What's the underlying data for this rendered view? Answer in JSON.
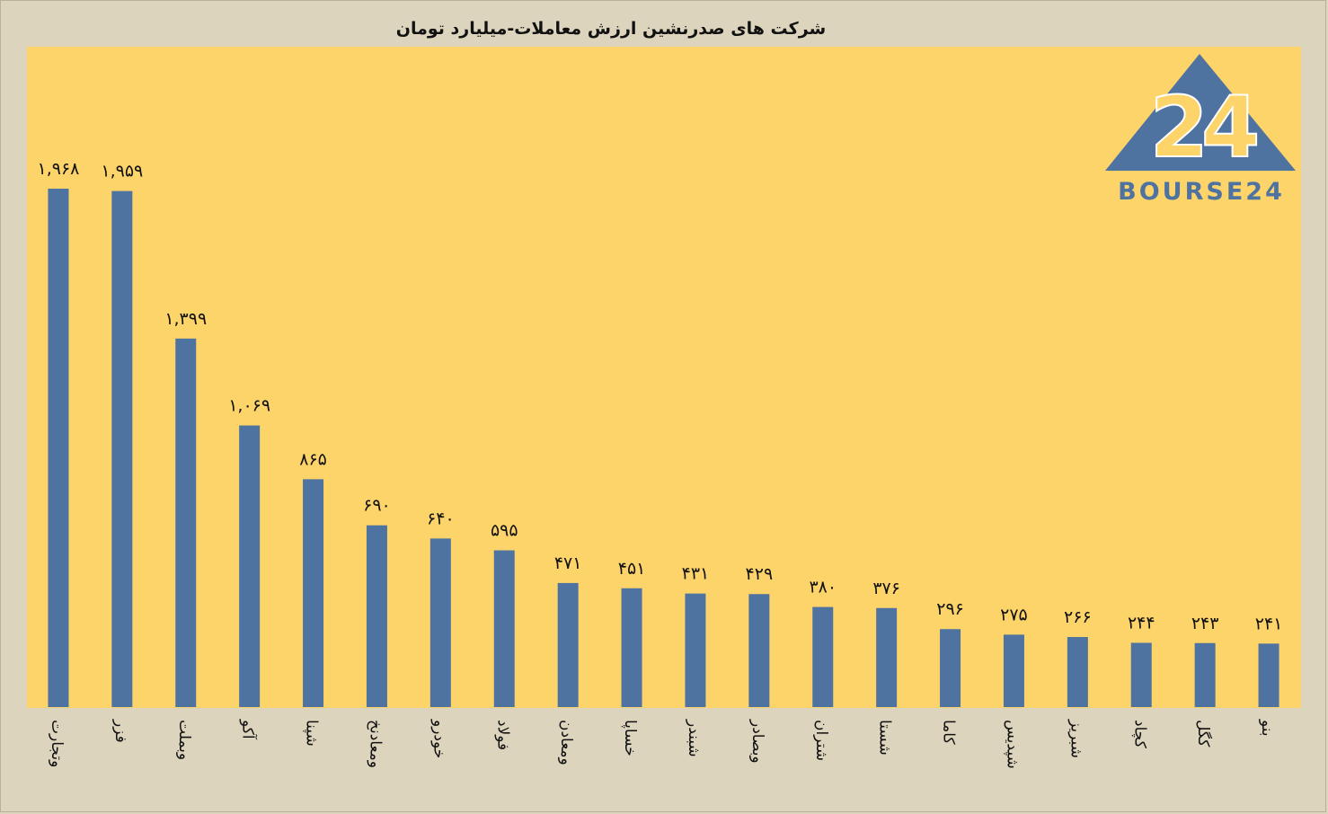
{
  "chart_data": {
    "type": "bar",
    "title": "شرکت های صدرنشین ارزش معاملات-میلیارد تومان",
    "xlabel": "",
    "ylabel": "",
    "ylim": [
      0,
      2200
    ],
    "grid": false,
    "legend": "none",
    "categories": [
      "وتجارت",
      "فزر",
      "وبملت",
      "آکو",
      "شپنا",
      "ومعادنخ",
      "خودرو",
      "فولاد",
      "ومعادن",
      "خساپا",
      "شبندر",
      "وبصادر",
      "شتران",
      "شستا",
      "کاما",
      "شپدیس",
      "شبریز",
      "کچاد",
      "کگل",
      "بنو"
    ],
    "values": [
      1968,
      1959,
      1399,
      1069,
      865,
      690,
      640,
      595,
      471,
      451,
      431,
      429,
      380,
      376,
      296,
      275,
      266,
      244,
      243,
      241
    ],
    "data_labels": [
      "۱,۹۶۸",
      "۱,۹۵۹",
      "۱,۳۹۹",
      "۱,۰۶۹",
      "۸۶۵",
      "۶۹۰",
      "۶۴۰",
      "۵۹۵",
      "۴۷۱",
      "۴۵۱",
      "۴۳۱",
      "۴۲۹",
      "۳۸۰",
      "۳۷۶",
      "۲۹۶",
      "۲۷۵",
      "۲۶۶",
      "۲۴۴",
      "۲۴۳",
      "۲۴۱"
    ]
  },
  "colors": {
    "bar": "#4f73a0",
    "plot_background": "#fcd46a",
    "page_background": "#ddd4bd",
    "logo": "#4f73a0"
  },
  "logo": {
    "mark_text": "24",
    "word_text": "BOURSE24"
  }
}
